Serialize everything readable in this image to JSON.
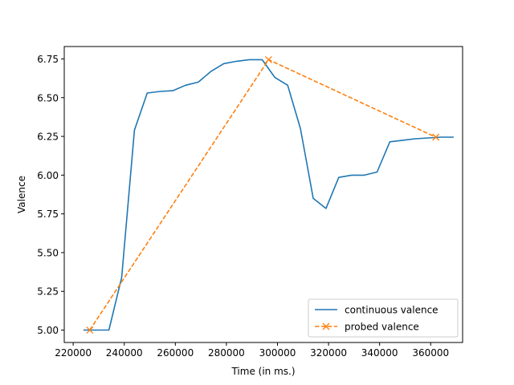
{
  "chart_data": {
    "type": "line",
    "xlabel": "Time (in ms.)",
    "ylabel": "Valence",
    "xlim": [
      216500,
      372500
    ],
    "ylim": [
      4.92,
      6.83
    ],
    "xticks": [
      220000,
      240000,
      260000,
      280000,
      300000,
      320000,
      340000,
      360000
    ],
    "xtick_labels": [
      "220000",
      "240000",
      "260000",
      "280000",
      "300000",
      "320000",
      "340000",
      "360000"
    ],
    "yticks": [
      5.0,
      5.25,
      5.5,
      5.75,
      6.0,
      6.25,
      6.5,
      6.75
    ],
    "ytick_labels": [
      "5.00",
      "5.25",
      "5.50",
      "5.75",
      "6.00",
      "6.25",
      "6.50",
      "6.75"
    ],
    "grid": false,
    "legend_position": "lower-right",
    "series": [
      {
        "name": "continuous valence",
        "color": "#1f77b4",
        "style": "solid",
        "marker": "none",
        "x": [
          224000,
          229000,
          234000,
          239000,
          244000,
          249000,
          254000,
          259000,
          264000,
          269000,
          274000,
          279000,
          284000,
          289000,
          294000,
          299000,
          304000,
          309000,
          314000,
          319000,
          324000,
          329000,
          334000,
          339000,
          344000,
          349000,
          354000,
          359000,
          364000,
          369000
        ],
        "y": [
          5.0,
          5.0,
          5.0,
          5.34,
          6.29,
          6.53,
          6.54,
          6.545,
          6.58,
          6.6,
          6.67,
          6.72,
          6.735,
          6.745,
          6.745,
          6.63,
          6.58,
          6.3,
          5.85,
          5.785,
          5.985,
          6.0,
          6.0,
          6.02,
          6.215,
          6.225,
          6.235,
          6.24,
          6.245,
          6.245
        ]
      },
      {
        "name": "probed valence",
        "color": "#ff7f0e",
        "style": "dashed",
        "marker": "x",
        "x": [
          226500,
          296500,
          362000
        ],
        "y": [
          5.0,
          6.745,
          6.245
        ]
      }
    ]
  }
}
